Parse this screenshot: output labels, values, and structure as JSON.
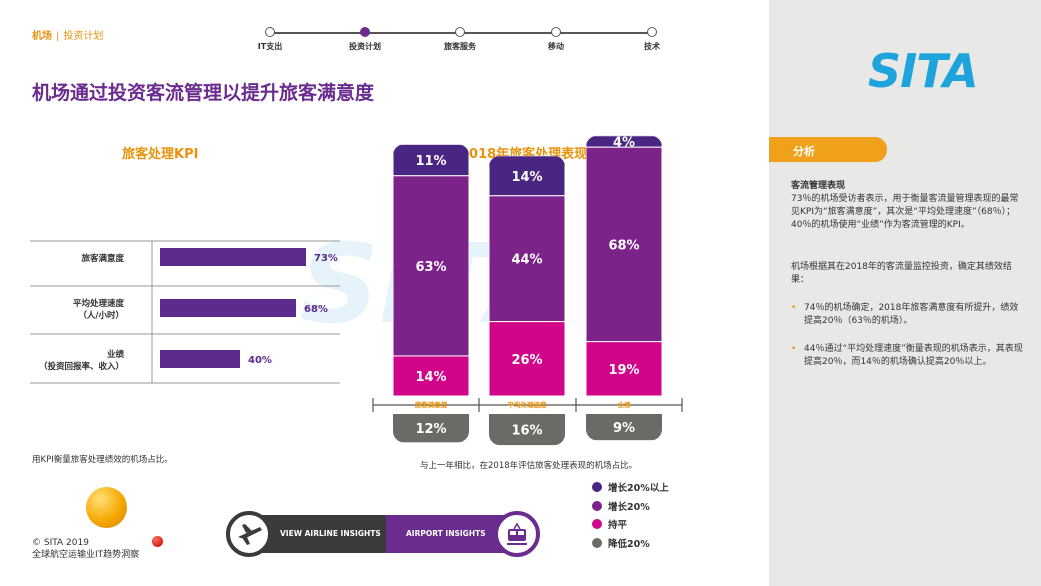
{
  "breadcrumb": {
    "section": "机场",
    "sep": "|",
    "page": "投资计划"
  },
  "nav": [
    "IT支出",
    "投资计划",
    "旅客服务",
    "移动",
    "技术"
  ],
  "title": "机场通过投资客流管理以提升旅客满意度",
  "kpi_subtitle": "旅客处理KPI",
  "perf_subtitle": "2018年旅客处理表现",
  "kpi_caption": "用KPI衡量旅客处理绩效的机场占比。",
  "perf_caption": "与上一年相比，在2018年评估旅客处理表现的机场占比。",
  "legend": [
    "增长20%以上",
    "增长20%",
    "持平",
    "降低20%"
  ],
  "insights": {
    "airline": "VIEW AIRLINE INSIGHTS",
    "airport": "AIRPORT INSIGHTS"
  },
  "footer": {
    "copyright": "© SITA 2019",
    "name": "全球航空运输业IT趋势洞察"
  },
  "logo": "SITA",
  "panel": {
    "tab": "分析",
    "head": "客流管理表现",
    "p1": "73％的机场受访者表示，用于衡量客流量管理表现的最常见KPI为“旅客满意度”，其次是“平均处理速度”（68％）；40％的机场使用“业绩”作为客流管理的KPI。",
    "p2": "机场根据其在2018年的客流量监控投资，确定其绩效结果：",
    "b1": "74％的机场确定，2018年旅客满意度有所提升，绩效提高20％（63％的机场）。",
    "b2": "44％通过“平均处理速度”衡量表现的机场表示，其表现提高20％，而14％的机场确认提高20％以上。"
  },
  "colors": {
    "dark_purple": "#4a2683",
    "purple": "#7b2389",
    "magenta": "#d0058a",
    "gray": "#6b6b66",
    "orange": "#e8930c",
    "bar_purple": "#5c2a8c"
  },
  "chart_data": [
    {
      "type": "bar",
      "orientation": "horizontal",
      "title": "旅客处理KPI",
      "categories": [
        "旅客满意度",
        "平均处理速度（人/小时）",
        "业绩（投资回报率、收入）"
      ],
      "category_lines": [
        [
          "旅客满意度"
        ],
        [
          "平均处理速度",
          "（人/小时）"
        ],
        [
          "业绩",
          "（投资回报率、收入）"
        ]
      ],
      "values": [
        73,
        68,
        40
      ],
      "labels": [
        "73%",
        "68%",
        "40%"
      ],
      "xlim": [
        0,
        100
      ]
    },
    {
      "type": "bar",
      "stacked": true,
      "title": "2018年旅客处理表现",
      "categories": [
        "旅客满意度",
        "平均处理速度",
        "业绩"
      ],
      "series": [
        {
          "name": "增长20%以上",
          "values": [
            11,
            14,
            4
          ]
        },
        {
          "name": "增长20%",
          "values": [
            63,
            44,
            68
          ]
        },
        {
          "name": "持平",
          "values": [
            14,
            26,
            19
          ]
        },
        {
          "name": "降低20%",
          "values": [
            12,
            16,
            9
          ]
        }
      ]
    }
  ]
}
